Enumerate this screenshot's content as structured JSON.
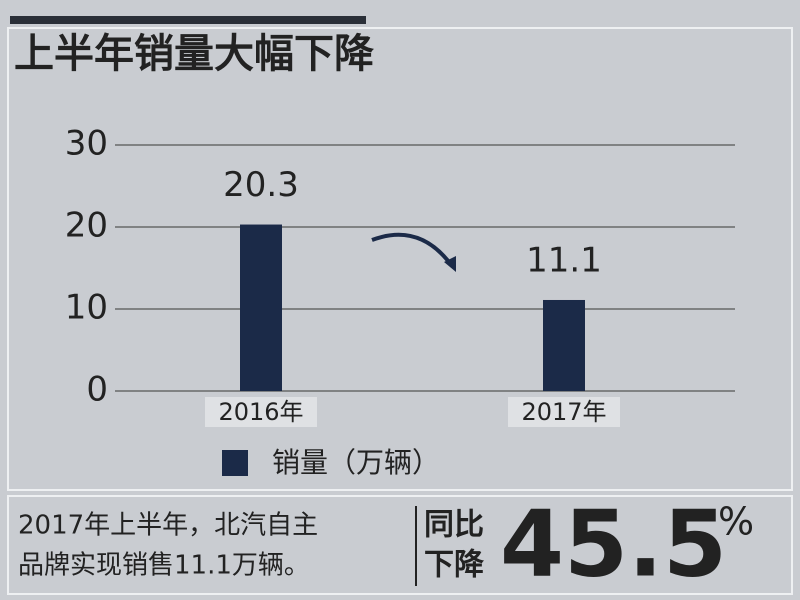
{
  "chart_data": {
    "type": "bar",
    "title": "上半年销量大幅下降",
    "categories": [
      "2016年",
      "2017年"
    ],
    "series": [
      {
        "name": "销量（万辆）",
        "color": "#1b2a48",
        "values": [
          20.3,
          11.1
        ]
      }
    ],
    "ylim": [
      0,
      30
    ],
    "yticks": [
      0,
      10,
      20,
      30
    ],
    "grid": true
  },
  "footer": {
    "lines": [
      "2017年上半年，北汽自主",
      "品牌实现销售11.1万辆。"
    ],
    "badge": [
      "同比",
      "下降"
    ],
    "value": 45.5,
    "unit": "%"
  }
}
